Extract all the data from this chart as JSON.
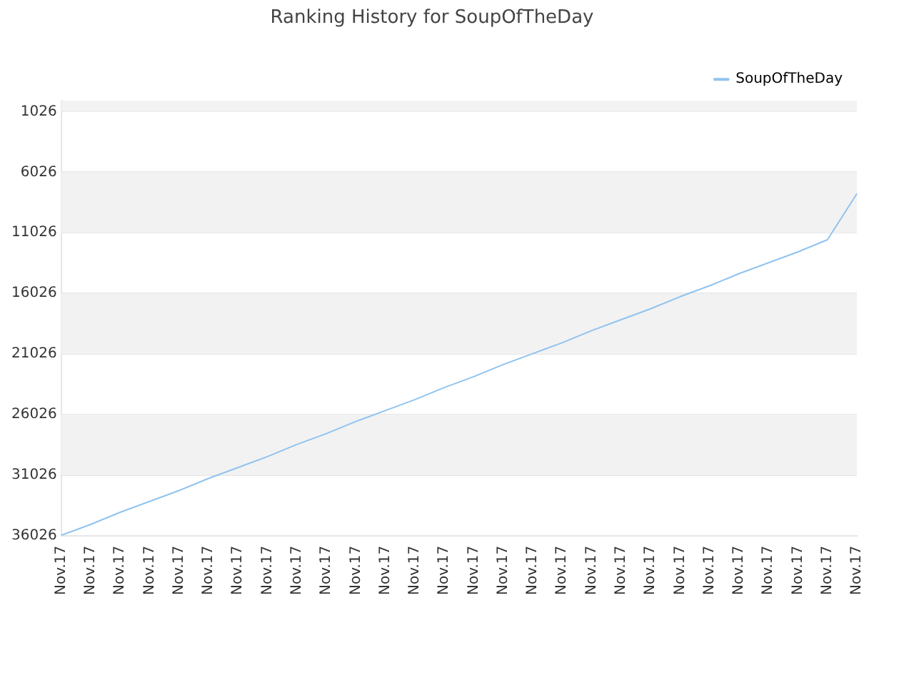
{
  "chart_data": {
    "type": "line",
    "title": "Ranking History for SoupOfTheDay",
    "categories": [
      "Nov.17",
      "Nov.17",
      "Nov.17",
      "Nov.17",
      "Nov.17",
      "Nov.17",
      "Nov.17",
      "Nov.17",
      "Nov.17",
      "Nov.17",
      "Nov.17",
      "Nov.17",
      "Nov.17",
      "Nov.17",
      "Nov.17",
      "Nov.17",
      "Nov.17",
      "Nov.17",
      "Nov.17",
      "Nov.17",
      "Nov.17",
      "Nov.17",
      "Nov.17",
      "Nov.17",
      "Nov.17",
      "Nov.17",
      "Nov.17",
      "Nov.17"
    ],
    "series": [
      {
        "name": "SoupOfTheDay",
        "color": "#90c3f0",
        "values": [
          36000,
          35100,
          34100,
          33200,
          32300,
          31300,
          30400,
          29500,
          28500,
          27600,
          26600,
          25700,
          24800,
          23800,
          22900,
          21900,
          21000,
          20100,
          19100,
          18200,
          17300,
          16300,
          15400,
          14400,
          13500,
          12600,
          11600,
          7800
        ]
      }
    ],
    "ylim": [
      36026,
      126
    ],
    "yticks": [
      1026,
      6026,
      11026,
      16026,
      21026,
      26026,
      31026,
      36026
    ],
    "bands": [
      {
        "axis": "y",
        "from": 126,
        "to": 1026,
        "color": "#f2f2f2"
      },
      {
        "axis": "y",
        "from": 6026,
        "to": 11026,
        "color": "#f2f2f2"
      },
      {
        "axis": "y",
        "from": 16026,
        "to": 21026,
        "color": "#f2f2f2"
      },
      {
        "axis": "y",
        "from": 26026,
        "to": 31026,
        "color": "#f2f2f2"
      }
    ],
    "grid": "y",
    "legend": "top right",
    "marker": "none",
    "line_style": "solid"
  }
}
